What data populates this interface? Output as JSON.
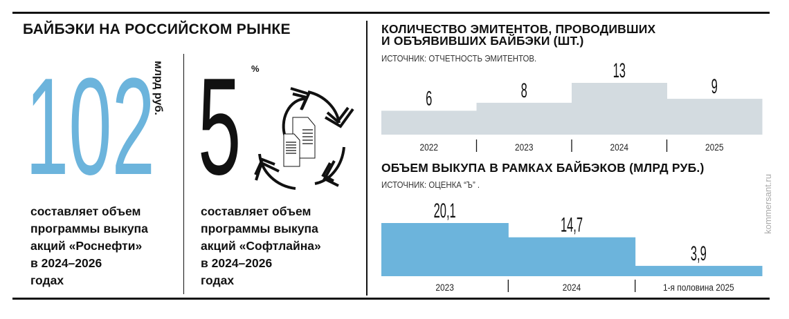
{
  "header": {
    "title": "БАЙБЭКИ НА РОССИЙСКОМ РЫНКЕ"
  },
  "stats": [
    {
      "value": "102",
      "unit": "млрд руб.",
      "description": "составляет объем\nпрограммы выкупа\nакций «Роснефти»\nв 2024–2026\nгодах",
      "color": "#6cb4dc"
    },
    {
      "value": "5",
      "unit": "%",
      "description": "составляет объем\nпрограммы выкупа\nакций «Софтлайна»\nв 2024–2026\nгодах",
      "color": "#111111",
      "icon": "document-cycle-arrows-icon"
    }
  ],
  "watermark": "kommersant.ru",
  "chart_data": [
    {
      "type": "bar",
      "title": "КОЛИЧЕСТВО ЭМИТЕНТОВ, ПРОВОДИВШИХ И ОБЪЯВИВШИХ БАЙБЭКИ (ШТ.)",
      "title_lines": [
        "КОЛИЧЕСТВО ЭМИТЕНТОВ, ПРОВОДИВШИХ",
        "И ОБЪЯВИВШИХ БАЙБЭКИ (ШТ.)"
      ],
      "source": "ИСТОЧНИК: ОТЧЕТНОСТЬ ЭМИТЕНТОВ.",
      "categories": [
        "2022",
        "2023",
        "2024",
        "2025"
      ],
      "values": [
        6,
        8,
        13,
        9
      ],
      "labels": [
        "6",
        "8",
        "13",
        "9"
      ],
      "color": "#d3dbe0",
      "grid": false
    },
    {
      "type": "bar",
      "title": "ОБЪЕМ ВЫКУПА В РАМКАХ БАЙБЭКОВ (МЛРД РУБ.)",
      "title_lines": [
        "ОБЪЕМ ВЫКУПА В РАМКАХ БАЙБЭКОВ (МЛРД РУБ.)"
      ],
      "source": "ИСТОЧНИК: ОЦЕНКА “Ъ” .",
      "categories": [
        "2023",
        "2024",
        "1-я половина 2025"
      ],
      "values": [
        20.1,
        14.7,
        3.9
      ],
      "labels": [
        "20,1",
        "14,7",
        "3,9"
      ],
      "color": "#6cb4dc",
      "grid": false
    }
  ]
}
